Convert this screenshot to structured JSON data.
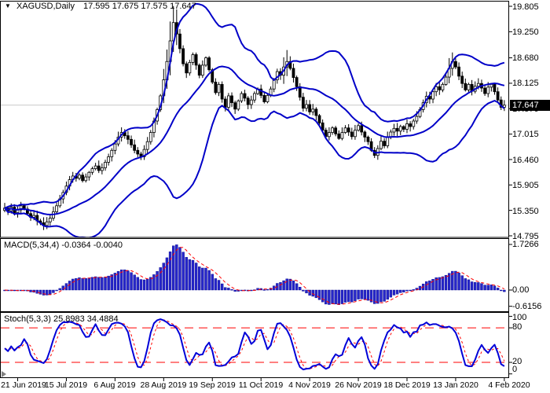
{
  "window": {
    "symbol": "XAGUSD,Daily",
    "ohlc_text": "17.595 17.675 17.575 17.647",
    "dropdown_icon": "triangle-down"
  },
  "main_chart": {
    "price_ticks": [
      "19.805",
      "19.250",
      "18.680",
      "18.125",
      "17.570",
      "17.015",
      "16.460",
      "15.905",
      "15.350",
      "14.795"
    ],
    "bid_price": "17.647",
    "bid_line_color": "#c8c8c8",
    "band_color": "#0000c8",
    "candle_up_fill": "#ffffff",
    "candle_down_fill": "#000000",
    "candle_outline": "#000000"
  },
  "macd_panel": {
    "label_full": "MACD(5,34,4) -0.0364 -0.0040",
    "ticks": [
      "1.7266",
      "0.00",
      "-0.6156"
    ],
    "histogram_color": "#2626c9",
    "signal_color": "#ff0000"
  },
  "stoch_panel": {
    "label_full": "Stoch(5,3,3) 25.8983 34.4884",
    "ticks": [
      "100",
      "80",
      "20",
      "0"
    ],
    "k_color": "#0000d8",
    "d_color": "#ff0000",
    "level_color": "#ff0000"
  },
  "time_axis": {
    "labels": [
      "21 Jun 2019",
      "15 Jul 2019",
      "6 Aug 2019",
      "28 Aug 2019",
      "19 Sep 2019",
      "11 Oct 2019",
      "4 Nov 2019",
      "26 Nov 2019",
      "18 Dec 2019",
      "13 Jan 2020",
      "4 Feb 2020"
    ]
  },
  "chart_data": {
    "type": "candlestick",
    "symbol": "XAGUSD",
    "timeframe": "Daily",
    "title": "XAGUSD,Daily 17.595 17.675 17.575 17.647",
    "ohlc_display": {
      "open": 17.595,
      "high": 17.675,
      "low": 17.575,
      "close": 17.647
    },
    "ylim": [
      14.795,
      19.805
    ],
    "y_axis_ticks": [
      19.805,
      19.25,
      18.68,
      18.125,
      17.57,
      17.015,
      16.46,
      15.905,
      15.35,
      14.795
    ],
    "x_labels": [
      "21 Jun 2019",
      "15 Jul 2019",
      "6 Aug 2019",
      "28 Aug 2019",
      "19 Sep 2019",
      "11 Oct 2019",
      "4 Nov 2019",
      "26 Nov 2019",
      "18 Dec 2019",
      "13 Jan 2020",
      "4 Feb 2020"
    ],
    "x_label_bar_indices": [
      4,
      19,
      34,
      49,
      64,
      79,
      94,
      109,
      124,
      139,
      154
    ],
    "bid": 17.647,
    "closes": [
      15.4,
      15.34,
      15.42,
      15.3,
      15.36,
      15.45,
      15.38,
      15.28,
      15.2,
      15.24,
      15.12,
      15.08,
      15.02,
      15.1,
      15.18,
      15.32,
      15.45,
      15.6,
      15.74,
      15.88,
      16.02,
      16.1,
      16.05,
      16.12,
      16.0,
      16.08,
      16.18,
      16.26,
      16.32,
      16.22,
      16.28,
      16.4,
      16.52,
      16.66,
      16.8,
      16.95,
      17.05,
      16.98,
      16.9,
      16.78,
      16.66,
      16.58,
      16.52,
      16.68,
      16.85,
      17.05,
      17.3,
      17.55,
      17.85,
      18.2,
      18.6,
      19.05,
      19.45,
      19.2,
      18.88,
      18.55,
      18.35,
      18.58,
      18.75,
      18.52,
      18.3,
      18.52,
      18.68,
      18.42,
      18.15,
      17.92,
      18.1,
      17.78,
      17.6,
      17.85,
      17.7,
      17.56,
      17.74,
      17.9,
      17.8,
      17.66,
      17.76,
      17.9,
      18.0,
      17.86,
      17.72,
      17.86,
      18.0,
      18.2,
      18.38,
      18.3,
      18.48,
      18.6,
      18.45,
      18.25,
      18.05,
      17.82,
      17.58,
      17.66,
      17.5,
      17.56,
      17.42,
      17.26,
      17.1,
      16.96,
      17.05,
      17.15,
      17.02,
      16.92,
      17.05,
      17.15,
      17.06,
      16.96,
      17.1,
      17.2,
      17.06,
      16.95,
      16.85,
      16.66,
      16.55,
      16.7,
      16.86,
      16.76,
      16.95,
      17.06,
      17.14,
      17.08,
      17.18,
      17.12,
      17.24,
      17.18,
      17.3,
      17.4,
      17.55,
      17.7,
      17.84,
      17.78,
      17.94,
      18.05,
      17.98,
      18.1,
      18.26,
      18.45,
      18.6,
      18.48,
      18.28,
      18.12,
      17.98,
      18.1,
      17.95,
      18.06,
      18.12,
      18.02,
      17.9,
      18.04,
      18.1,
      17.94,
      17.76,
      17.6,
      17.647
    ],
    "wick_overrides": {
      "49": 0.18,
      "50": 0.22,
      "51": 0.32,
      "52": 0.28,
      "53": 0.22,
      "86": 0.15,
      "87": 0.18,
      "137": 0.12,
      "138": 0.15
    },
    "indicators": [
      {
        "name": "Bollinger Bands",
        "period": 20,
        "deviation": 2,
        "applied_to": "close"
      },
      {
        "name": "MACD",
        "fast_ema": 5,
        "slow_ema": 34,
        "signal": 4,
        "current_macd": -0.0364,
        "current_signal": -0.004,
        "axis_ticks": [
          1.7266,
          0.0,
          -0.6156
        ]
      },
      {
        "name": "Stochastic",
        "k": 5,
        "d": 3,
        "slowing": 3,
        "current_k": 25.8983,
        "current_d": 34.4884,
        "levels": [
          80,
          20
        ]
      }
    ]
  }
}
